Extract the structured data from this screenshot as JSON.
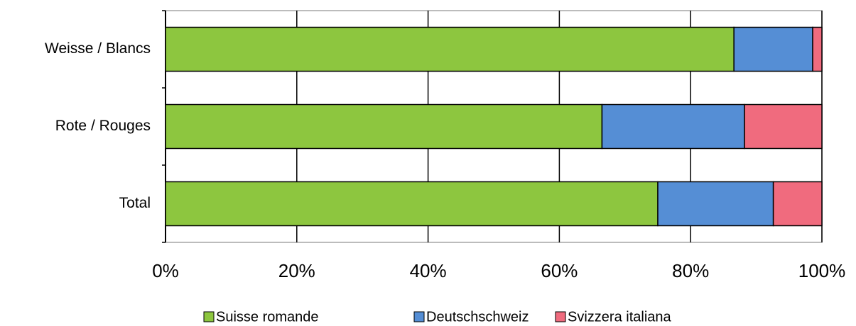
{
  "chart_data": {
    "type": "stacked-bar-horizontal",
    "categories": [
      "Weisse / Blancs",
      "Rote / Rouges",
      "Total"
    ],
    "series": [
      {
        "name": "Suisse romande",
        "color": "#8dc63f",
        "values": [
          86.6,
          66.5,
          75.0
        ]
      },
      {
        "name": "Deutschschweiz",
        "color": "#558ed5",
        "values": [
          12.0,
          21.7,
          17.6
        ]
      },
      {
        "name": "Svizzera italiana",
        "color": "#f06b7e",
        "values": [
          1.4,
          11.8,
          7.4
        ]
      }
    ],
    "xlim": [
      0,
      100
    ],
    "xticks": [
      {
        "value": 0,
        "label": "0%"
      },
      {
        "value": 20,
        "label": "20%"
      },
      {
        "value": 40,
        "label": "40%"
      },
      {
        "value": 60,
        "label": "60%"
      },
      {
        "value": 80,
        "label": "80%"
      },
      {
        "value": 100,
        "label": "100%"
      }
    ],
    "grid": true,
    "legend": "bottom"
  }
}
